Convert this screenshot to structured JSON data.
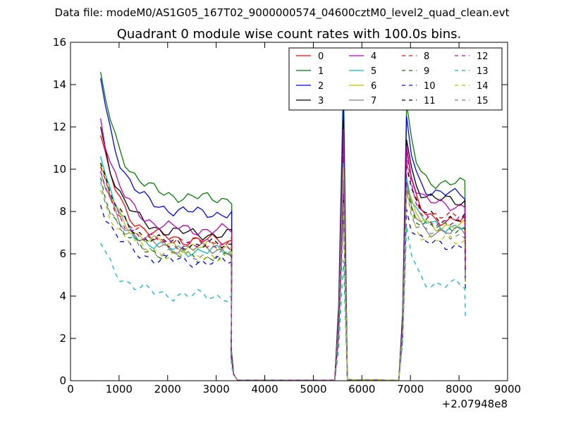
{
  "suptitle": "Data file: modeM0/AS1G05_167T02_9000000574_04600cztM0_level2_quad_clean.evt",
  "chart_data": {
    "type": "line",
    "title": "Quadrant 0 module wise count rates with 100.0s bins.",
    "xlabel": "",
    "ylabel": "",
    "x_offset_label": "+2.07948e8",
    "xlim": [
      0,
      9000
    ],
    "ylim": [
      0,
      16
    ],
    "xticks": [
      0,
      1000,
      2000,
      3000,
      4000,
      5000,
      6000,
      7000,
      8000,
      9000
    ],
    "yticks": [
      0,
      2,
      4,
      6,
      8,
      10,
      12,
      14,
      16
    ],
    "grid": false,
    "legend_position": "top-right",
    "legend_columns": 4,
    "series": [
      {
        "name": "0",
        "color": "#ff0000",
        "dash": "solid",
        "seg1_start": 11.6,
        "seg1_level": 6.6,
        "spike": 10.6,
        "seg2_start": 10.9,
        "seg2_level": 7.6
      },
      {
        "name": "1",
        "color": "#008000",
        "dash": "solid",
        "seg1_start": 14.6,
        "seg1_level": 8.6,
        "spike": 14.4,
        "seg2_start": 13.1,
        "seg2_level": 9.3
      },
      {
        "name": "2",
        "color": "#0000ff",
        "dash": "solid",
        "seg1_start": 14.3,
        "seg1_level": 7.9,
        "spike": 13.1,
        "seg2_start": 12.5,
        "seg2_level": 8.8
      },
      {
        "name": "3",
        "color": "#000000",
        "dash": "solid",
        "seg1_start": 12.0,
        "seg1_level": 6.9,
        "spike": 12.3,
        "seg2_start": 11.4,
        "seg2_level": 8.5
      },
      {
        "name": "4",
        "color": "#bf00bf",
        "dash": "solid",
        "seg1_start": 12.4,
        "seg1_level": 7.1,
        "spike": 11.9,
        "seg2_start": 11.1,
        "seg2_level": 8.3
      },
      {
        "name": "5",
        "color": "#00bfbf",
        "dash": "solid",
        "seg1_start": 10.6,
        "seg1_level": 6.1,
        "spike": 10.3,
        "seg2_start": 9.6,
        "seg2_level": 7.3
      },
      {
        "name": "6",
        "color": "#bfbf00",
        "dash": "solid",
        "seg1_start": 10.2,
        "seg1_level": 6.3,
        "spike": 10.1,
        "seg2_start": 9.2,
        "seg2_level": 7.3
      },
      {
        "name": "7",
        "color": "#808080",
        "dash": "solid",
        "seg1_start": 9.9,
        "seg1_level": 6.2,
        "spike": 9.5,
        "seg2_start": 9.4,
        "seg2_level": 7.0
      },
      {
        "name": "8",
        "color": "#ff0000",
        "dash": "dashed",
        "seg1_start": 10.1,
        "seg1_level": 6.5,
        "spike": 8.5,
        "seg2_start": 10.3,
        "seg2_level": 7.7
      },
      {
        "name": "9",
        "color": "#008000",
        "dash": "dashed",
        "seg1_start": 9.6,
        "seg1_level": 5.8,
        "spike": 8.7,
        "seg2_start": 9.1,
        "seg2_level": 7.2
      },
      {
        "name": "10",
        "color": "#0000ff",
        "dash": "dashed",
        "seg1_start": 8.3,
        "seg1_level": 5.6,
        "spike": 7.8,
        "seg2_start": 8.1,
        "seg2_level": 6.4
      },
      {
        "name": "11",
        "color": "#000000",
        "dash": "dashed",
        "seg1_start": 10.3,
        "seg1_level": 6.4,
        "spike": 8.6,
        "seg2_start": 10.1,
        "seg2_level": 7.7
      },
      {
        "name": "12",
        "color": "#bf00bf",
        "dash": "dashed",
        "seg1_start": 9.9,
        "seg1_level": 6.4,
        "spike": 8.9,
        "seg2_start": 10.6,
        "seg2_level": 7.5
      },
      {
        "name": "13",
        "color": "#00bfbf",
        "dash": "dashed",
        "seg1_start": 6.5,
        "seg1_level": 4.0,
        "spike": 5.7,
        "seg2_start": 7.3,
        "seg2_level": 4.5
      },
      {
        "name": "14",
        "color": "#bfbf00",
        "dash": "dashed",
        "seg1_start": 9.0,
        "seg1_level": 5.9,
        "spike": 8.3,
        "seg2_start": 9.0,
        "seg2_level": 6.6
      },
      {
        "name": "15",
        "color": "#808080",
        "dash": "dashed",
        "seg1_start": 9.4,
        "seg1_level": 5.9,
        "spike": 8.4,
        "seg2_start": 9.0,
        "seg2_level": 6.9
      }
    ]
  }
}
